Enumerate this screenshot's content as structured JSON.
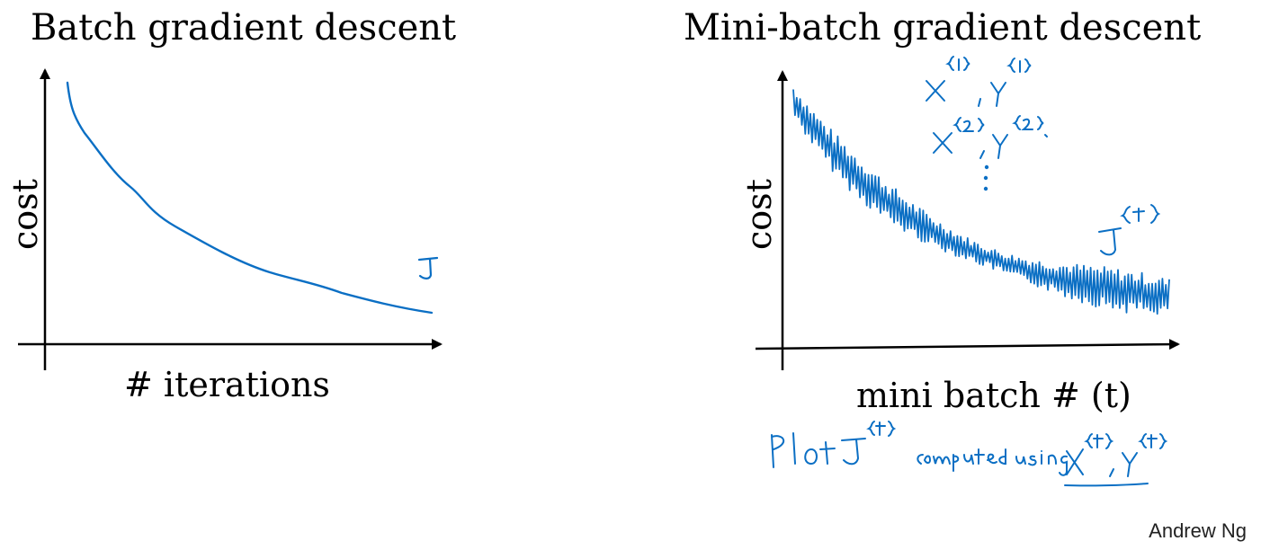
{
  "left_panel": {
    "title": "Batch gradient descent",
    "ylabel": "cost",
    "xlabel": "# iterations",
    "curve_label": "J"
  },
  "right_panel": {
    "title": "Mini-batch gradient descent",
    "ylabel": "cost",
    "xlabel": "mini batch # (t)",
    "curve_label": "J{t}",
    "notes": [
      "X{1}, Y{1}",
      "X{2}, Y{2}",
      "⋮"
    ],
    "caption": "Plot J{t} computed using X{t}, Y{t}"
  },
  "credit": "Andrew Ng",
  "colors": {
    "ink": "#0b6fc4",
    "axis": "#000000"
  }
}
